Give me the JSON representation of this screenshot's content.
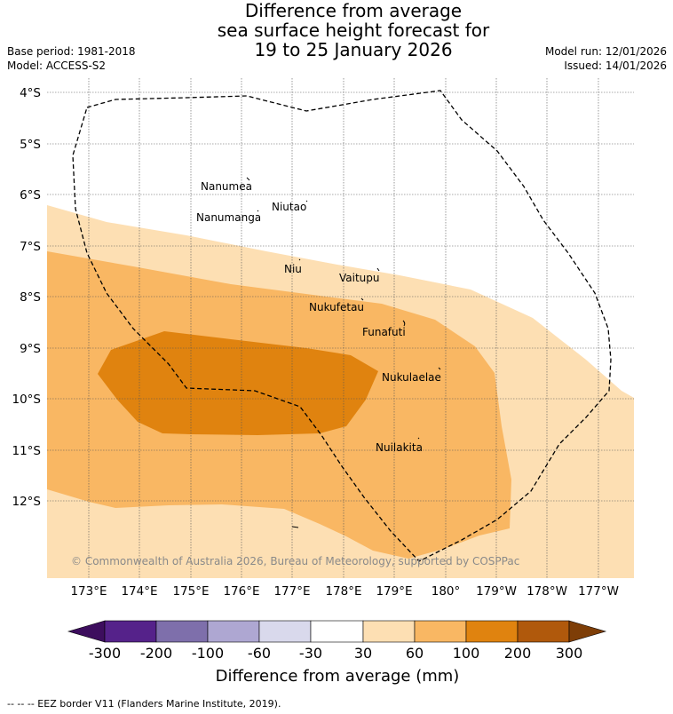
{
  "title": {
    "line1": "Difference from average",
    "line2": "sea surface height forecast for",
    "line3": "19 to 25 January 2026"
  },
  "meta": {
    "base_period": "Base period: 1981-2018",
    "model": "Model: ACCESS-S2",
    "model_run": "Model run: 12/01/2026",
    "issued": "Issued: 14/01/2026"
  },
  "axes": {
    "lat_ticks": [
      "4°S",
      "5°S",
      "6°S",
      "7°S",
      "8°S",
      "9°S",
      "10°S",
      "11°S",
      "12°S"
    ],
    "lon_ticks": [
      "173°E",
      "174°E",
      "175°E",
      "176°E",
      "177°E",
      "178°E",
      "179°E",
      "180°",
      "179°W",
      "178°W",
      "177°W"
    ]
  },
  "islands": [
    {
      "name": "Nanumea"
    },
    {
      "name": "Nanumanga"
    },
    {
      "name": "Niutao"
    },
    {
      "name": "Niu"
    },
    {
      "name": "Vaitupu"
    },
    {
      "name": "Nukufetau"
    },
    {
      "name": "Funafuti"
    },
    {
      "name": "Nukulaelae"
    },
    {
      "name": "Nuilakita"
    }
  ],
  "copyright": "© Commonwealth of Australia 2026, Bureau of Meteorology, supported by COSPPac",
  "colorbar": {
    "title": "Difference from average (mm)",
    "labels": [
      "-300",
      "-200",
      "-100",
      "-60",
      "-30",
      "30",
      "60",
      "100",
      "200",
      "300"
    ],
    "colors": [
      "#3d0e5e",
      "#55228a",
      "#7e6fab",
      "#aea7d2",
      "#d9d9ec",
      "#ffffff",
      "#fddfb3",
      "#f9b763",
      "#e0830f",
      "#b0590c",
      "#7e3e07"
    ]
  },
  "footnote": "-- -- -- EEZ border V11 (Flanders Marine Institute, 2019)."
}
